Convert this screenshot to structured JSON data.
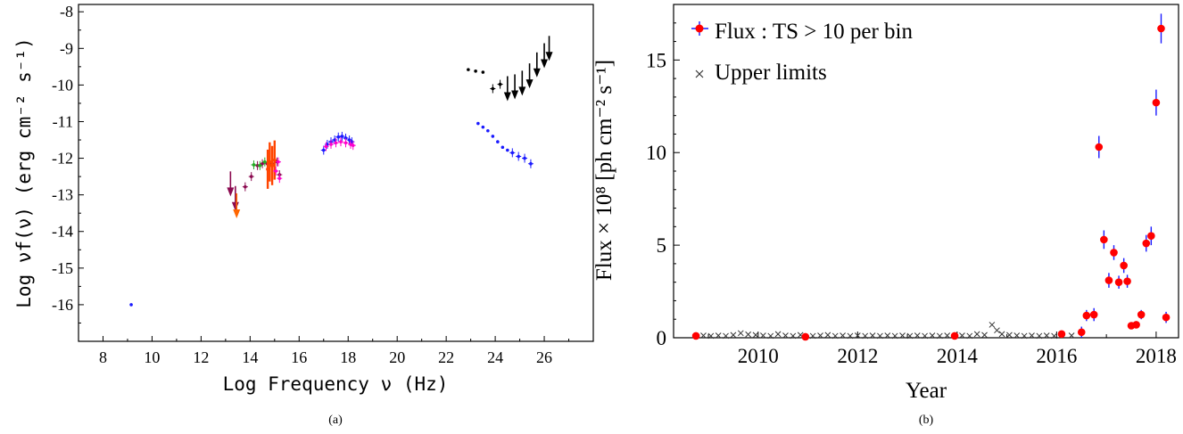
{
  "chart_data": [
    {
      "type": "scatter",
      "panel_label": "(a)",
      "xlabel": "Log Frequency ν (Hz)",
      "ylabel": "Log νf(ν) (erg cm⁻² s⁻¹)",
      "xlim": [
        7,
        28
      ],
      "ylim": [
        -17,
        -7.8
      ],
      "xticks": [
        8,
        10,
        12,
        14,
        16,
        18,
        20,
        22,
        24,
        26
      ],
      "yticks": [
        -8,
        -9,
        -10,
        -11,
        -12,
        -13,
        -14,
        -15,
        -16
      ],
      "grid": false,
      "series": [
        {
          "marker": "dot",
          "color": "#1a1aff",
          "points": [
            [
              9.15,
              -16.0
            ]
          ]
        },
        {
          "marker": "down-arrow",
          "color": "#8b0a50",
          "points": [
            [
              13.2,
              -12.7
            ],
            [
              13.4,
              -13.1
            ]
          ]
        },
        {
          "marker": "down-arrow",
          "color": "#ff6600",
          "points": [
            [
              13.45,
              -13.3
            ]
          ]
        },
        {
          "marker": "dot-errorbar",
          "color": "#8b0a50",
          "points": [
            [
              13.8,
              -12.78
            ],
            [
              14.05,
              -12.5
            ],
            [
              14.3,
              -12.2
            ],
            [
              14.5,
              -12.15
            ],
            [
              14.7,
              -12.15
            ],
            [
              14.9,
              -12.15
            ],
            [
              15.1,
              -12.1
            ],
            [
              15.2,
              -12.45
            ]
          ]
        },
        {
          "marker": "dot-errorbar",
          "color": "#22aa22",
          "points": [
            [
              14.15,
              -12.18
            ],
            [
              14.4,
              -12.2
            ],
            [
              14.6,
              -12.1
            ]
          ]
        },
        {
          "marker": "vertical-band",
          "color": "#ff4400",
          "points": [
            [
              14.72,
              -12.3
            ],
            [
              14.8,
              -12.1
            ],
            [
              14.9,
              -12.2
            ],
            [
              15.0,
              -12.05
            ]
          ]
        },
        {
          "marker": "dot-errorbar",
          "color": "#ff00cc",
          "points": [
            [
              15.05,
              -12.35
            ],
            [
              15.2,
              -12.55
            ],
            [
              15.15,
              -12.1
            ]
          ]
        },
        {
          "marker": "dot-errorbar",
          "color": "#1a1aff",
          "points": [
            [
              17.0,
              -11.78
            ],
            [
              17.15,
              -11.62
            ],
            [
              17.3,
              -11.55
            ],
            [
              17.45,
              -11.5
            ],
            [
              17.6,
              -11.42
            ],
            [
              17.75,
              -11.4
            ],
            [
              17.9,
              -11.45
            ],
            [
              18.05,
              -11.5
            ],
            [
              18.15,
              -11.55
            ]
          ]
        },
        {
          "marker": "dot-errorbar",
          "color": "#ff00cc",
          "points": [
            [
              17.1,
              -11.68
            ],
            [
              17.3,
              -11.62
            ],
            [
              17.5,
              -11.58
            ],
            [
              17.7,
              -11.55
            ],
            [
              17.9,
              -11.58
            ],
            [
              18.1,
              -11.62
            ],
            [
              18.2,
              -11.65
            ]
          ]
        },
        {
          "marker": "dot",
          "color": "#000000",
          "points": [
            [
              22.9,
              -9.58
            ],
            [
              23.2,
              -9.62
            ],
            [
              23.5,
              -9.65
            ]
          ]
        },
        {
          "marker": "dot-errorbar",
          "color": "#000000",
          "points": [
            [
              23.9,
              -10.1
            ],
            [
              24.2,
              -9.98
            ]
          ]
        },
        {
          "marker": "down-arrow",
          "color": "#000000",
          "points": [
            [
              24.5,
              -10.1
            ],
            [
              24.8,
              -10.05
            ],
            [
              25.1,
              -9.95
            ],
            [
              25.4,
              -9.75
            ],
            [
              25.7,
              -9.45
            ],
            [
              26.0,
              -9.2
            ],
            [
              26.2,
              -9.0
            ]
          ]
        },
        {
          "marker": "dot",
          "color": "#1a1aff",
          "points": [
            [
              23.3,
              -11.05
            ],
            [
              23.5,
              -11.15
            ],
            [
              23.7,
              -11.25
            ],
            [
              23.9,
              -11.4
            ],
            [
              24.1,
              -11.55
            ],
            [
              24.3,
              -11.7
            ],
            [
              24.5,
              -11.78
            ]
          ]
        },
        {
          "marker": "dot-errorbar",
          "color": "#1a1aff",
          "points": [
            [
              24.7,
              -11.85
            ],
            [
              24.95,
              -11.95
            ],
            [
              25.2,
              -12.0
            ],
            [
              25.45,
              -12.15
            ]
          ]
        }
      ]
    },
    {
      "type": "scatter",
      "panel_label": "(b)",
      "xlabel": "Year",
      "ylabel": "Flux × 10⁸ [ph cm⁻² s⁻¹]",
      "xlim": [
        2008.3,
        2018.45
      ],
      "ylim": [
        0,
        18
      ],
      "xticks": [
        2010,
        2012,
        2014,
        2016,
        2018
      ],
      "yticks": [
        0,
        5,
        10,
        15
      ],
      "grid": false,
      "legend": {
        "position": "top-left",
        "entries": [
          "Flux : TS > 10 per bin",
          "Upper limits"
        ]
      },
      "series": [
        {
          "name": "Flux : TS > 10 per bin",
          "marker": "red-dot",
          "color": "#ff0000",
          "errorbar_color": "#1a1aff",
          "points": [
            [
              2008.75,
              0.1,
              0.05
            ],
            [
              2010.95,
              0.05,
              0.05
            ],
            [
              2013.95,
              0.1,
              0.1
            ],
            [
              2016.1,
              0.2,
              0.1
            ],
            [
              2016.5,
              0.3,
              0.3
            ],
            [
              2016.6,
              1.2,
              0.3
            ],
            [
              2016.75,
              1.25,
              0.35
            ],
            [
              2016.85,
              10.3,
              0.6
            ],
            [
              2016.95,
              5.3,
              0.5
            ],
            [
              2017.05,
              3.1,
              0.4
            ],
            [
              2017.15,
              4.6,
              0.4
            ],
            [
              2017.25,
              3.0,
              0.35
            ],
            [
              2017.35,
              3.9,
              0.4
            ],
            [
              2017.42,
              3.05,
              0.35
            ],
            [
              2017.5,
              0.65,
              0.15
            ],
            [
              2017.6,
              0.7,
              0.15
            ],
            [
              2017.7,
              1.25,
              0.25
            ],
            [
              2017.8,
              5.1,
              0.45
            ],
            [
              2017.9,
              5.5,
              0.5
            ],
            [
              2018.0,
              12.7,
              0.7
            ],
            [
              2018.1,
              16.7,
              0.8
            ],
            [
              2018.2,
              1.1,
              0.3
            ]
          ]
        },
        {
          "name": "Upper limits",
          "marker": "x",
          "color": "#333333",
          "points": [
            [
              2008.9,
              0.12
            ],
            [
              2009.05,
              0.1
            ],
            [
              2009.2,
              0.12
            ],
            [
              2009.35,
              0.1
            ],
            [
              2009.5,
              0.15
            ],
            [
              2009.65,
              0.25
            ],
            [
              2009.8,
              0.18
            ],
            [
              2009.95,
              0.15
            ],
            [
              2010.1,
              0.12
            ],
            [
              2010.25,
              0.1
            ],
            [
              2010.4,
              0.2
            ],
            [
              2010.55,
              0.12
            ],
            [
              2010.7,
              0.1
            ],
            [
              2010.85,
              0.15
            ],
            [
              2011.1,
              0.1
            ],
            [
              2011.25,
              0.12
            ],
            [
              2011.4,
              0.15
            ],
            [
              2011.55,
              0.1
            ],
            [
              2011.7,
              0.12
            ],
            [
              2011.85,
              0.1
            ],
            [
              2012.0,
              0.12
            ],
            [
              2012.15,
              0.1
            ],
            [
              2012.3,
              0.12
            ],
            [
              2012.45,
              0.1
            ],
            [
              2012.6,
              0.12
            ],
            [
              2012.75,
              0.1
            ],
            [
              2012.9,
              0.12
            ],
            [
              2013.05,
              0.1
            ],
            [
              2013.2,
              0.12
            ],
            [
              2013.35,
              0.1
            ],
            [
              2013.5,
              0.12
            ],
            [
              2013.65,
              0.1
            ],
            [
              2013.8,
              0.12
            ],
            [
              2014.1,
              0.12
            ],
            [
              2014.25,
              0.1
            ],
            [
              2014.4,
              0.2
            ],
            [
              2014.55,
              0.15
            ],
            [
              2014.7,
              0.7
            ],
            [
              2014.8,
              0.4
            ],
            [
              2014.9,
              0.2
            ],
            [
              2015.05,
              0.15
            ],
            [
              2015.2,
              0.12
            ],
            [
              2015.35,
              0.1
            ],
            [
              2015.5,
              0.12
            ],
            [
              2015.65,
              0.1
            ],
            [
              2015.8,
              0.12
            ],
            [
              2015.95,
              0.1
            ],
            [
              2016.3,
              0.12
            ]
          ]
        }
      ]
    }
  ]
}
